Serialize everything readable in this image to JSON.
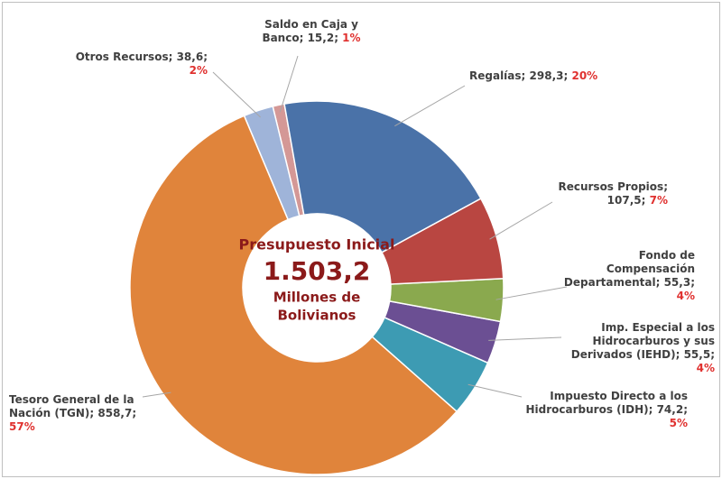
{
  "chart_data": {
    "type": "pie",
    "center_title": "Presupuesto Inicial",
    "center_value": "1.503,2",
    "center_unit": [
      "Millones de",
      "Bolivianos"
    ],
    "categories": [
      "Regalías",
      "Recursos Propios",
      "Fondo de Compensación Departamental",
      "Imp. Especial a los Hidrocarburos y sus Derivados (IEHD)",
      "Impuesto Directo a los Hidrocarburos (IDH)",
      "Tesoro General de la Nación (TGN)",
      "Otros Recursos",
      "Saldo en Caja y Banco"
    ],
    "values": [
      298.3,
      107.5,
      55.3,
      55.5,
      74.2,
      858.7,
      38.6,
      15.2
    ],
    "value_labels": [
      "298,3",
      "107,5",
      "55,3",
      "55,5",
      "74,2",
      "858,7",
      "38,6",
      "15,2"
    ],
    "percentage_labels": [
      "20%",
      "7%",
      "4%",
      "4%",
      "5%",
      "57%",
      "2%",
      "1%"
    ],
    "colors": [
      "#4a72a8",
      "#b94641",
      "#8aa94e",
      "#6b4f93",
      "#3d9bb3",
      "#e0843b",
      "#9fb4d9",
      "#d49896"
    ]
  }
}
